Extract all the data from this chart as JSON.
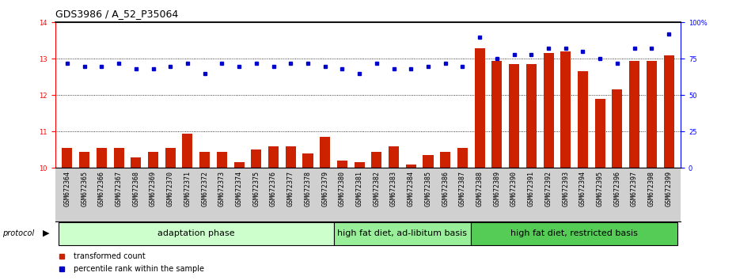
{
  "title": "GDS3986 / A_52_P35064",
  "samples": [
    "GSM672364",
    "GSM672365",
    "GSM672366",
    "GSM672367",
    "GSM672368",
    "GSM672369",
    "GSM672370",
    "GSM672371",
    "GSM672372",
    "GSM672373",
    "GSM672374",
    "GSM672375",
    "GSM672376",
    "GSM672377",
    "GSM672378",
    "GSM672379",
    "GSM672380",
    "GSM672381",
    "GSM672382",
    "GSM672383",
    "GSM672384",
    "GSM672385",
    "GSM672386",
    "GSM672387",
    "GSM672388",
    "GSM672389",
    "GSM672390",
    "GSM672391",
    "GSM672392",
    "GSM672393",
    "GSM672394",
    "GSM672395",
    "GSM672396",
    "GSM672397",
    "GSM672398",
    "GSM672399"
  ],
  "bar_values": [
    10.55,
    10.45,
    10.55,
    10.55,
    10.3,
    10.45,
    10.55,
    10.95,
    10.45,
    10.45,
    10.15,
    10.5,
    10.6,
    10.6,
    10.4,
    10.85,
    10.2,
    10.15,
    10.45,
    10.6,
    10.1,
    10.35,
    10.45,
    10.55,
    13.3,
    12.95,
    12.85,
    12.85,
    13.15,
    13.2,
    12.65,
    11.9,
    12.15,
    12.95,
    12.95,
    13.1
  ],
  "dot_values": [
    72,
    70,
    70,
    72,
    68,
    68,
    70,
    72,
    65,
    72,
    70,
    72,
    70,
    72,
    72,
    70,
    68,
    65,
    72,
    68,
    68,
    70,
    72,
    70,
    90,
    75,
    78,
    78,
    82,
    82,
    80,
    75,
    72,
    82,
    82,
    92
  ],
  "groups": [
    {
      "label": "adaptation phase",
      "start": 0,
      "end": 16,
      "color": "#ccffcc"
    },
    {
      "label": "high fat diet, ad-libitum basis",
      "start": 16,
      "end": 24,
      "color": "#99ee99"
    },
    {
      "label": "high fat diet, restricted basis",
      "start": 24,
      "end": 36,
      "color": "#55cc55"
    }
  ],
  "bar_color": "#cc2200",
  "dot_color": "#0000cc",
  "ylim_left": [
    10,
    14
  ],
  "ylim_right": [
    0,
    100
  ],
  "yticks_left": [
    10,
    11,
    12,
    13,
    14
  ],
  "yticks_right": [
    0,
    25,
    50,
    75,
    100
  ],
  "ytick_labels_right": [
    "0",
    "25",
    "50",
    "75",
    "100%"
  ],
  "hlines": [
    11,
    12,
    13
  ],
  "title_fontsize": 9,
  "tick_fontsize": 6,
  "label_fontsize": 8,
  "group_label_fontsize": 8,
  "legend_items": [
    {
      "label": "transformed count",
      "color": "#cc2200",
      "marker": "s"
    },
    {
      "label": "percentile rank within the sample",
      "color": "#0000cc",
      "marker": "s"
    }
  ]
}
